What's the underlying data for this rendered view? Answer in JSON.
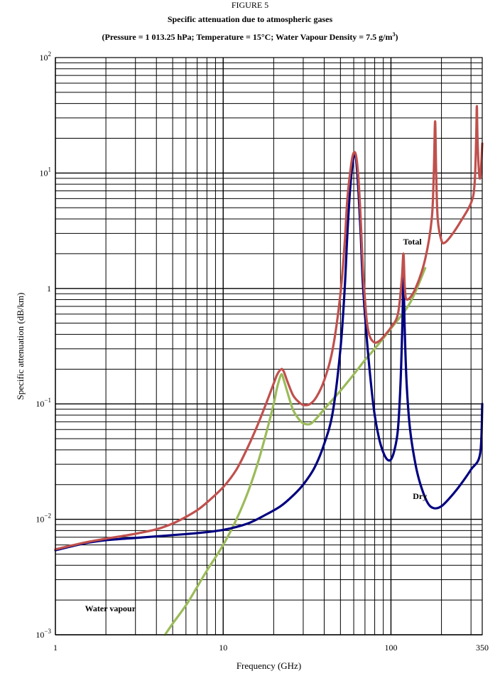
{
  "figure_label": "FIGURE 5",
  "title": "Specific attenuation due to atmospheric gases",
  "subtitle": {
    "main": "(Pressure = 1 013.25 hPa; Temperature = 15°C; Water Vapour Density = 7.5 g/m",
    "sup": "3",
    "end": ")"
  },
  "colors": {
    "total": "#c0504d",
    "dry": "#000080",
    "water_vapour": "#9bbb59",
    "grid": "#000000"
  },
  "chart_data": {
    "type": "line",
    "title": "Specific attenuation due to atmospheric gases",
    "xlabel": "Frequency (GHz)",
    "ylabel": "Specific attenuation (dB/km)",
    "x_scale": "log",
    "y_scale": "log",
    "xlim": [
      1,
      350
    ],
    "ylim": [
      0.001,
      100
    ],
    "grid": true,
    "x_ticks": [
      {
        "value": 1,
        "label": "1"
      },
      {
        "value": 10,
        "label": "10"
      },
      {
        "value": 100,
        "label": "100"
      },
      {
        "value": 350,
        "label": "350"
      }
    ],
    "y_ticks": [
      {
        "value": 0.001,
        "base": "10",
        "exp": "−3"
      },
      {
        "value": 0.01,
        "base": "10",
        "exp": "−2"
      },
      {
        "value": 0.1,
        "base": "10",
        "exp": "−1"
      },
      {
        "value": 1,
        "base": "1",
        "exp": ""
      },
      {
        "value": 10,
        "base": "10",
        "exp": "1"
      },
      {
        "value": 100,
        "base": "10",
        "exp": "2"
      }
    ],
    "series": [
      {
        "name": "Total",
        "color_key": "total",
        "points": [
          [
            1,
            0.0055
          ],
          [
            1.5,
            0.0063
          ],
          [
            2,
            0.0068
          ],
          [
            3,
            0.0075
          ],
          [
            4,
            0.0082
          ],
          [
            5,
            0.0092
          ],
          [
            6,
            0.0105
          ],
          [
            7,
            0.012
          ],
          [
            8,
            0.014
          ],
          [
            10,
            0.019
          ],
          [
            12,
            0.027
          ],
          [
            14,
            0.042
          ],
          [
            16,
            0.065
          ],
          [
            18,
            0.1
          ],
          [
            20,
            0.15
          ],
          [
            21,
            0.18
          ],
          [
            22.2,
            0.2
          ],
          [
            23,
            0.19
          ],
          [
            24,
            0.16
          ],
          [
            26,
            0.12
          ],
          [
            28,
            0.105
          ],
          [
            30,
            0.098
          ],
          [
            33,
            0.1
          ],
          [
            36,
            0.115
          ],
          [
            40,
            0.16
          ],
          [
            45,
            0.3
          ],
          [
            50,
            0.9
          ],
          [
            53,
            2.5
          ],
          [
            55,
            6
          ],
          [
            58,
            12
          ],
          [
            60,
            15
          ],
          [
            62,
            14
          ],
          [
            64,
            9
          ],
          [
            66,
            4
          ],
          [
            68,
            1.5
          ],
          [
            70,
            0.8
          ],
          [
            72,
            0.5
          ],
          [
            75,
            0.38
          ],
          [
            80,
            0.34
          ],
          [
            85,
            0.35
          ],
          [
            90,
            0.38
          ],
          [
            100,
            0.46
          ],
          [
            110,
            0.6
          ],
          [
            116,
            1.2
          ],
          [
            118.75,
            2
          ],
          [
            121,
            1.0
          ],
          [
            125,
            0.8
          ],
          [
            140,
            1.0
          ],
          [
            160,
            1.8
          ],
          [
            175,
            4
          ],
          [
            180,
            10
          ],
          [
            183.3,
            28
          ],
          [
            186,
            10
          ],
          [
            190,
            4
          ],
          [
            200,
            2.6
          ],
          [
            210,
            2.5
          ],
          [
            230,
            2.9
          ],
          [
            260,
            3.8
          ],
          [
            300,
            5.5
          ],
          [
            315,
            8
          ],
          [
            322,
            20
          ],
          [
            325,
            38
          ],
          [
            328,
            20
          ],
          [
            335,
            10
          ],
          [
            342,
            9.5
          ],
          [
            350,
            18
          ]
        ]
      },
      {
        "name": "Dry",
        "color_key": "dry",
        "points": [
          [
            1,
            0.0054
          ],
          [
            1.5,
            0.0062
          ],
          [
            2,
            0.0066
          ],
          [
            3,
            0.0069
          ],
          [
            5,
            0.0073
          ],
          [
            7,
            0.0076
          ],
          [
            10,
            0.0081
          ],
          [
            14,
            0.0092
          ],
          [
            18,
            0.011
          ],
          [
            22,
            0.013
          ],
          [
            26,
            0.016
          ],
          [
            30,
            0.02
          ],
          [
            35,
            0.028
          ],
          [
            40,
            0.045
          ],
          [
            45,
            0.085
          ],
          [
            50,
            0.3
          ],
          [
            53,
            1.0
          ],
          [
            55,
            3
          ],
          [
            57,
            7
          ],
          [
            59,
            12
          ],
          [
            60.5,
            14.5
          ],
          [
            62,
            13
          ],
          [
            64,
            7
          ],
          [
            66,
            3
          ],
          [
            68,
            1.1
          ],
          [
            72,
            0.35
          ],
          [
            76,
            0.15
          ],
          [
            80,
            0.08
          ],
          [
            85,
            0.05
          ],
          [
            90,
            0.038
          ],
          [
            95,
            0.033
          ],
          [
            100,
            0.033
          ],
          [
            105,
            0.04
          ],
          [
            110,
            0.06
          ],
          [
            114,
            0.15
          ],
          [
            117,
            0.5
          ],
          [
            118.75,
            1.35
          ],
          [
            120.5,
            0.5
          ],
          [
            124,
            0.15
          ],
          [
            130,
            0.06
          ],
          [
            140,
            0.03
          ],
          [
            150,
            0.02
          ],
          [
            165,
            0.014
          ],
          [
            180,
            0.0125
          ],
          [
            200,
            0.013
          ],
          [
            230,
            0.016
          ],
          [
            260,
            0.02
          ],
          [
            300,
            0.027
          ],
          [
            340,
            0.037
          ],
          [
            350,
            0.1
          ]
        ]
      },
      {
        "name": "Water vapour",
        "color_key": "water_vapour",
        "points": [
          [
            4.5,
            0.001
          ],
          [
            5,
            0.00125
          ],
          [
            6,
            0.0018
          ],
          [
            7,
            0.0026
          ],
          [
            8,
            0.0036
          ],
          [
            10,
            0.006
          ],
          [
            12,
            0.01
          ],
          [
            14,
            0.017
          ],
          [
            16,
            0.03
          ],
          [
            18,
            0.055
          ],
          [
            20,
            0.1
          ],
          [
            21,
            0.14
          ],
          [
            22.2,
            0.18
          ],
          [
            23,
            0.16
          ],
          [
            24,
            0.13
          ],
          [
            26,
            0.09
          ],
          [
            28,
            0.075
          ],
          [
            30,
            0.068
          ],
          [
            33,
            0.067
          ],
          [
            36,
            0.075
          ],
          [
            40,
            0.09
          ],
          [
            50,
            0.13
          ],
          [
            60,
            0.18
          ],
          [
            70,
            0.24
          ],
          [
            80,
            0.3
          ],
          [
            100,
            0.45
          ],
          [
            130,
            0.75
          ],
          [
            160,
            1.5
          ]
        ]
      }
    ],
    "annotations": [
      {
        "text": "Total",
        "x": 118,
        "y": 2.4
      },
      {
        "text": "Dry",
        "x": 135,
        "y": 0.015
      },
      {
        "text": "Water vapour",
        "x": 1.5,
        "y": 0.0016
      }
    ]
  }
}
